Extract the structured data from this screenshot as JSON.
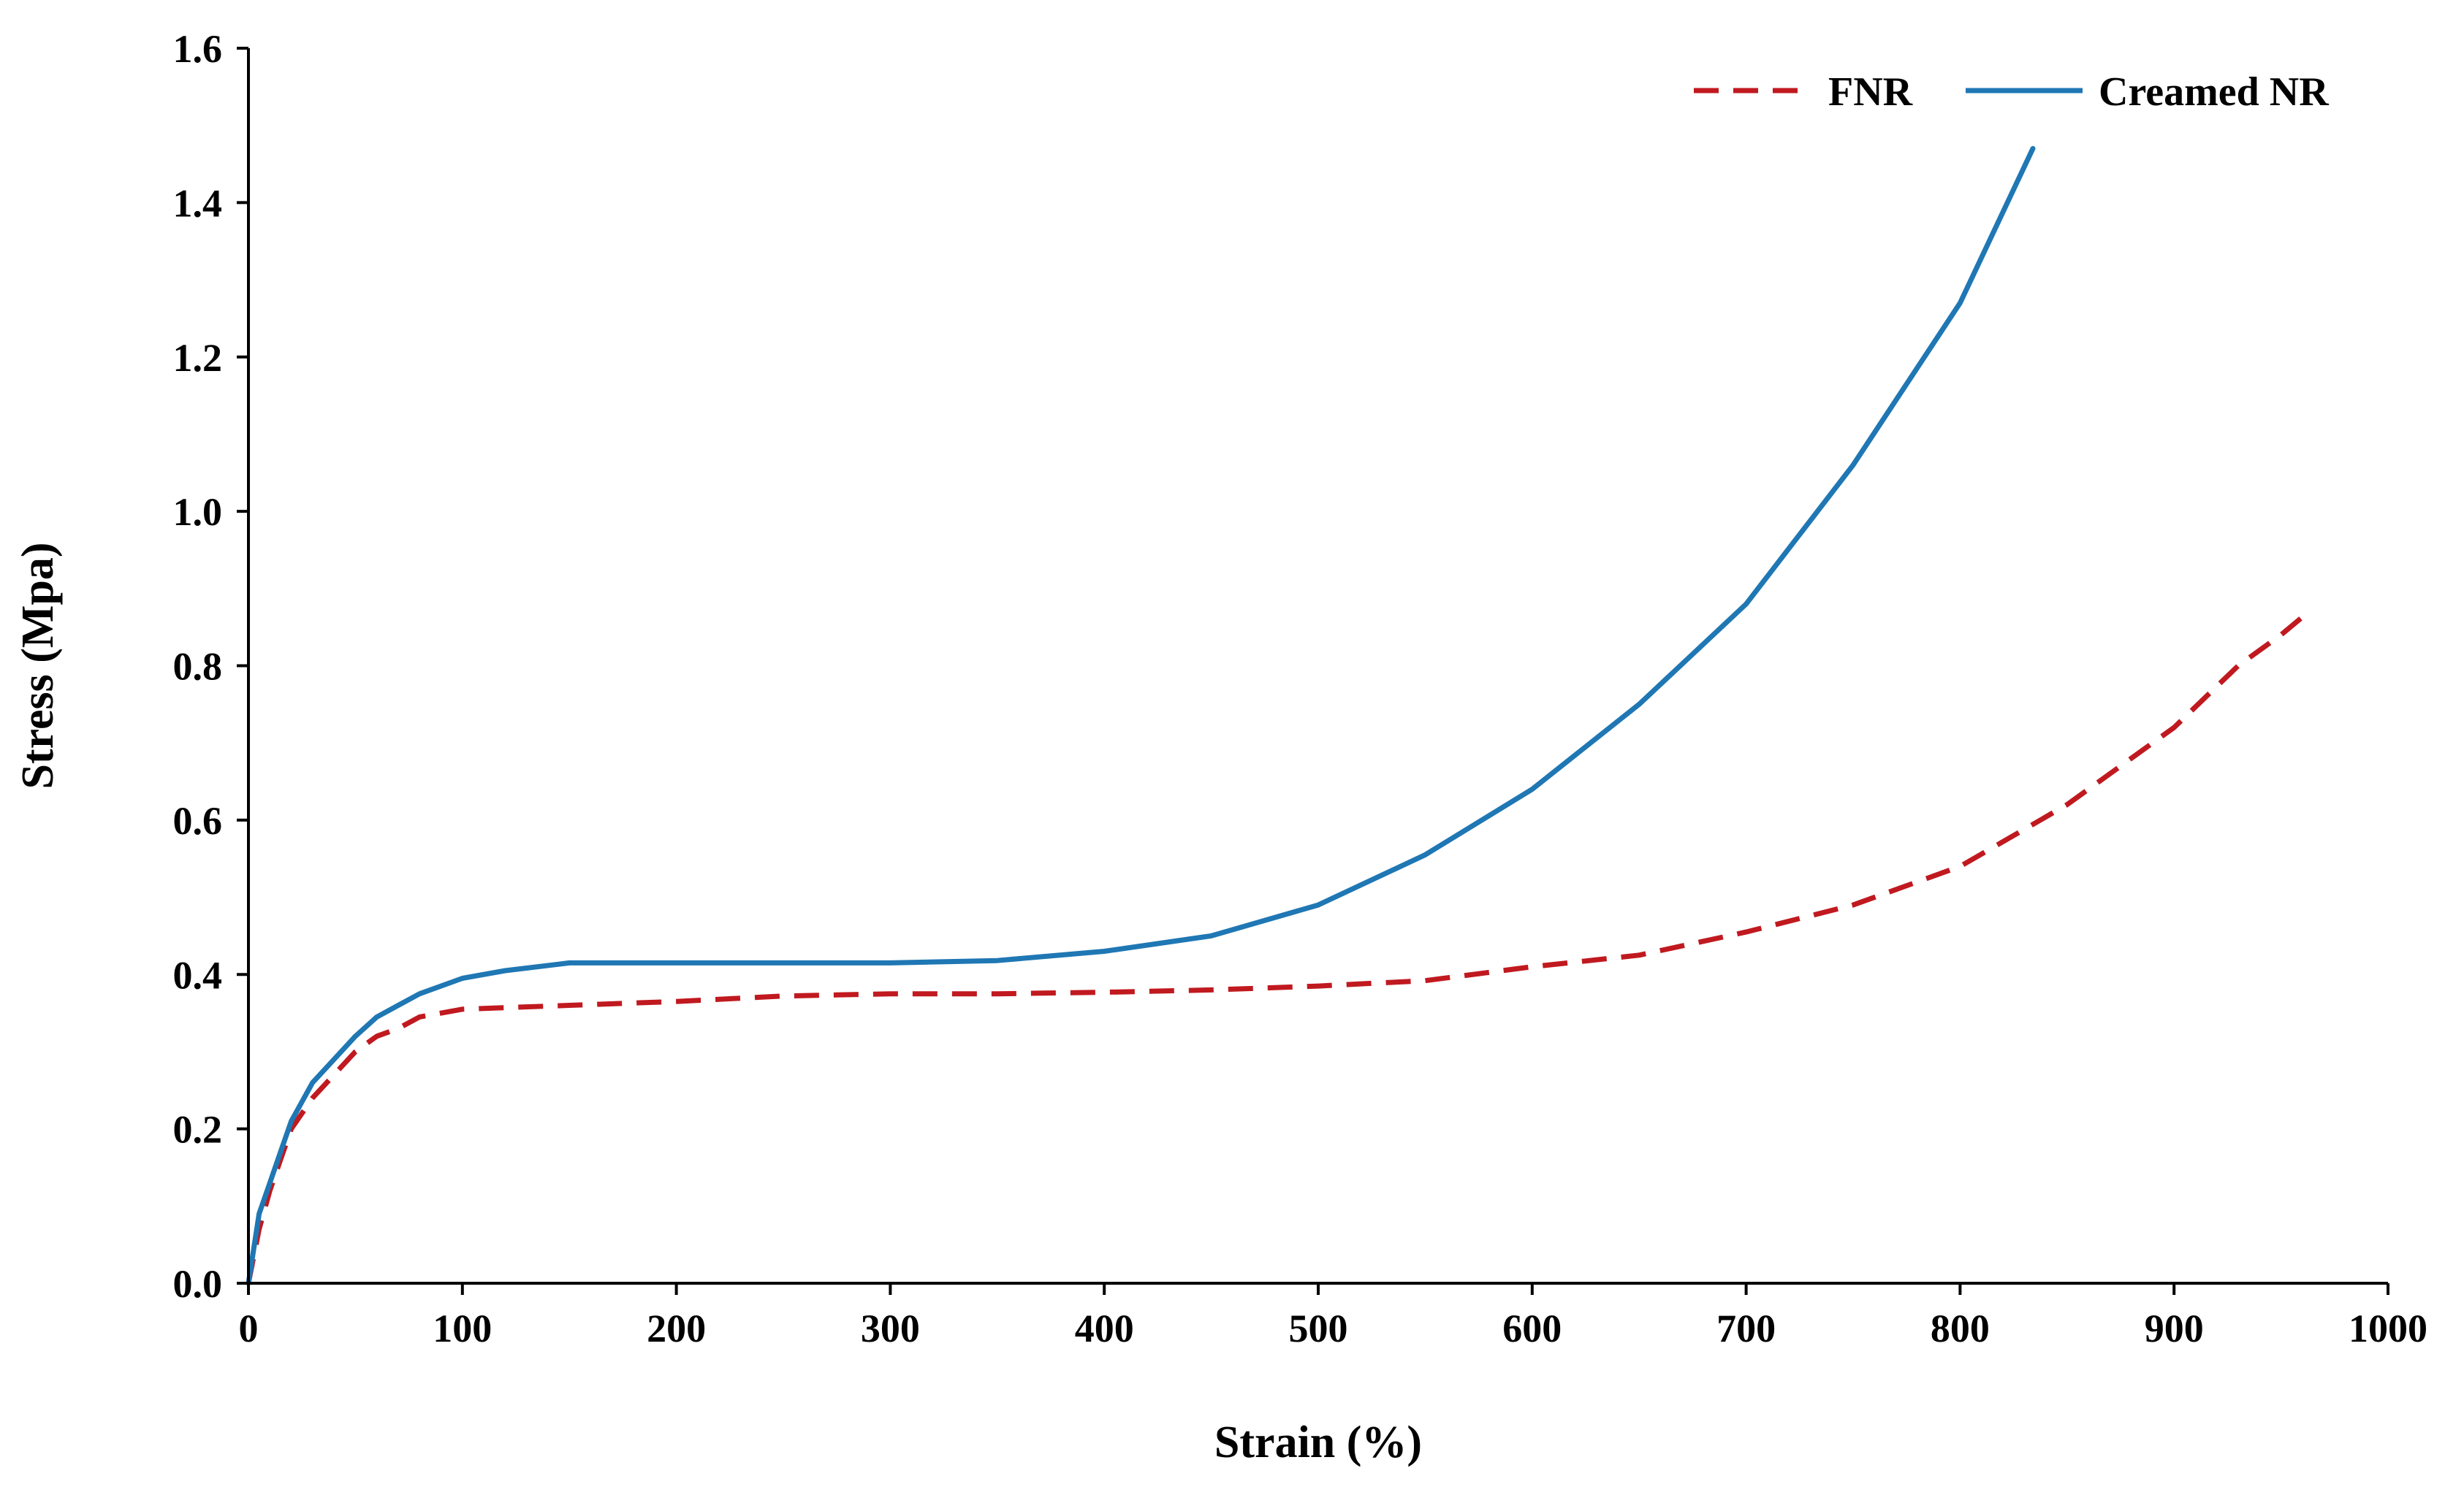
{
  "colors": {
    "fnr": "#C0191F",
    "creamed": "#1F77B4",
    "axis": "#000000",
    "background": "#FFFFFF"
  },
  "chart_data": {
    "type": "line",
    "title": "",
    "xlabel": "Strain (%)",
    "ylabel": "Stress (Mpa)",
    "xlim": [
      0,
      1000
    ],
    "ylim": [
      0,
      1.6
    ],
    "xticks": [
      "0",
      "100",
      "200",
      "300",
      "400",
      "500",
      "600",
      "700",
      "800",
      "900",
      "1000"
    ],
    "yticks": [
      "0.0",
      "0.2",
      "0.4",
      "0.6",
      "0.8",
      "1.0",
      "1.2",
      "1.4",
      "1.6"
    ],
    "grid": false,
    "legend_position": "top-right",
    "series": [
      {
        "name": "FNR",
        "style": "dashed",
        "x": [
          0,
          5,
          10,
          15,
          20,
          30,
          40,
          50,
          60,
          70,
          80,
          100,
          120,
          150,
          200,
          250,
          300,
          350,
          400,
          450,
          500,
          550,
          600,
          650,
          700,
          750,
          800,
          850,
          900,
          930,
          950,
          963
        ],
        "y": [
          0.0,
          0.07,
          0.12,
          0.16,
          0.2,
          0.24,
          0.27,
          0.3,
          0.32,
          0.33,
          0.345,
          0.355,
          0.357,
          0.36,
          0.365,
          0.372,
          0.375,
          0.375,
          0.377,
          0.38,
          0.385,
          0.392,
          0.41,
          0.425,
          0.455,
          0.49,
          0.54,
          0.62,
          0.72,
          0.8,
          0.84,
          0.87
        ]
      },
      {
        "name": "Creamed NR",
        "style": "solid",
        "x": [
          0,
          5,
          10,
          15,
          20,
          30,
          40,
          50,
          60,
          70,
          80,
          100,
          120,
          150,
          200,
          250,
          300,
          350,
          400,
          450,
          500,
          550,
          600,
          650,
          700,
          750,
          800,
          834
        ],
        "y": [
          0.0,
          0.09,
          0.13,
          0.17,
          0.21,
          0.26,
          0.29,
          0.32,
          0.345,
          0.36,
          0.375,
          0.395,
          0.405,
          0.415,
          0.415,
          0.415,
          0.415,
          0.418,
          0.43,
          0.45,
          0.49,
          0.555,
          0.64,
          0.75,
          0.88,
          1.06,
          1.27,
          1.47
        ]
      }
    ]
  }
}
